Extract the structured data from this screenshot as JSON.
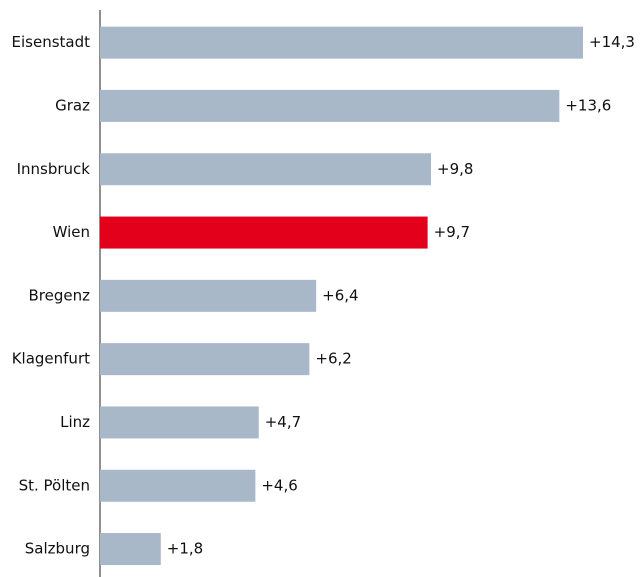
{
  "chart_data": {
    "type": "barh",
    "categories": [
      "Eisenstadt",
      "Graz",
      "Innsbruck",
      "Wien",
      "Bregenz",
      "Klagenfurt",
      "Linz",
      "St. Pölten",
      "Salzburg"
    ],
    "values": [
      14.3,
      13.6,
      9.8,
      9.7,
      6.4,
      6.2,
      4.7,
      4.6,
      1.8
    ],
    "value_labels": [
      "+14,3",
      "+13,6",
      "+9,8",
      "+9,7",
      "+6,4",
      "+6,2",
      "+4,7",
      "+4,6",
      "+1,8"
    ],
    "colors": [
      "#a8b8c9",
      "#a8b8c9",
      "#a8b8c9",
      "#e2001a",
      "#a8b8c9",
      "#a8b8c9",
      "#a8b8c9",
      "#a8b8c9",
      "#a8b8c9"
    ]
  }
}
